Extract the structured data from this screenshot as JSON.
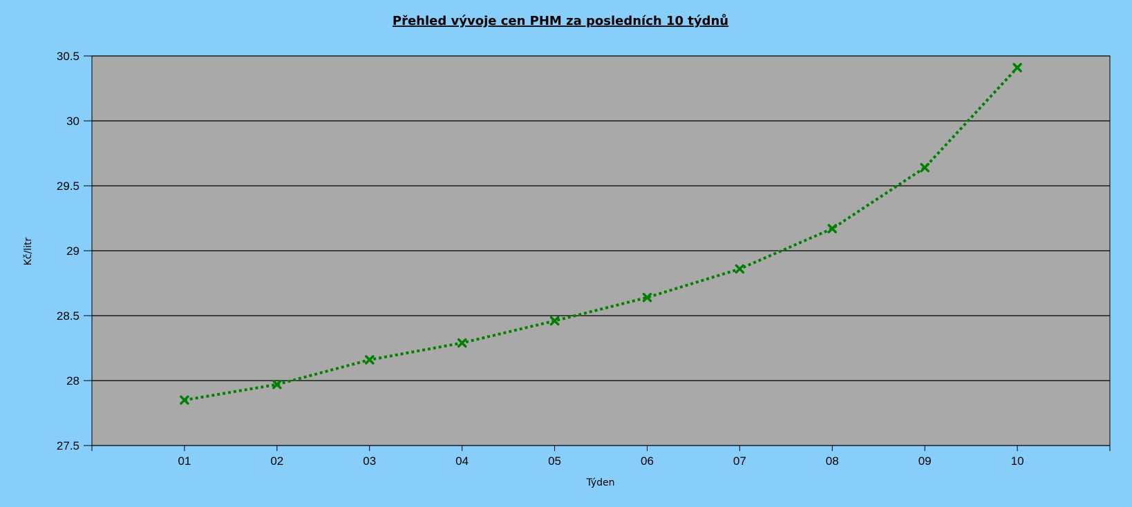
{
  "chart_data": {
    "type": "line",
    "title": "Přehled vývoje cen PHM za posledních 10 týdnů",
    "xlabel": "Týden",
    "ylabel": "Kč/litr",
    "categories": [
      "01",
      "02",
      "03",
      "04",
      "05",
      "06",
      "07",
      "08",
      "09",
      "10"
    ],
    "series": [
      {
        "values": [
          27.85,
          27.97,
          28.16,
          28.29,
          28.46,
          28.64,
          28.86,
          29.17,
          29.64,
          30.41
        ],
        "color": "#008000",
        "marker": "x",
        "line_style": "dotted"
      }
    ],
    "ylim": [
      27.5,
      30.5
    ],
    "yticks": [
      "27.5",
      "28",
      "28.5",
      "29",
      "29.5",
      "30",
      "30.5"
    ],
    "grid": "horizontal",
    "legend": "none",
    "colors": {
      "page_background": "#87CEFA",
      "plot_background": "#A9A9A9",
      "gridline": "#000000",
      "series": "#008000"
    }
  }
}
